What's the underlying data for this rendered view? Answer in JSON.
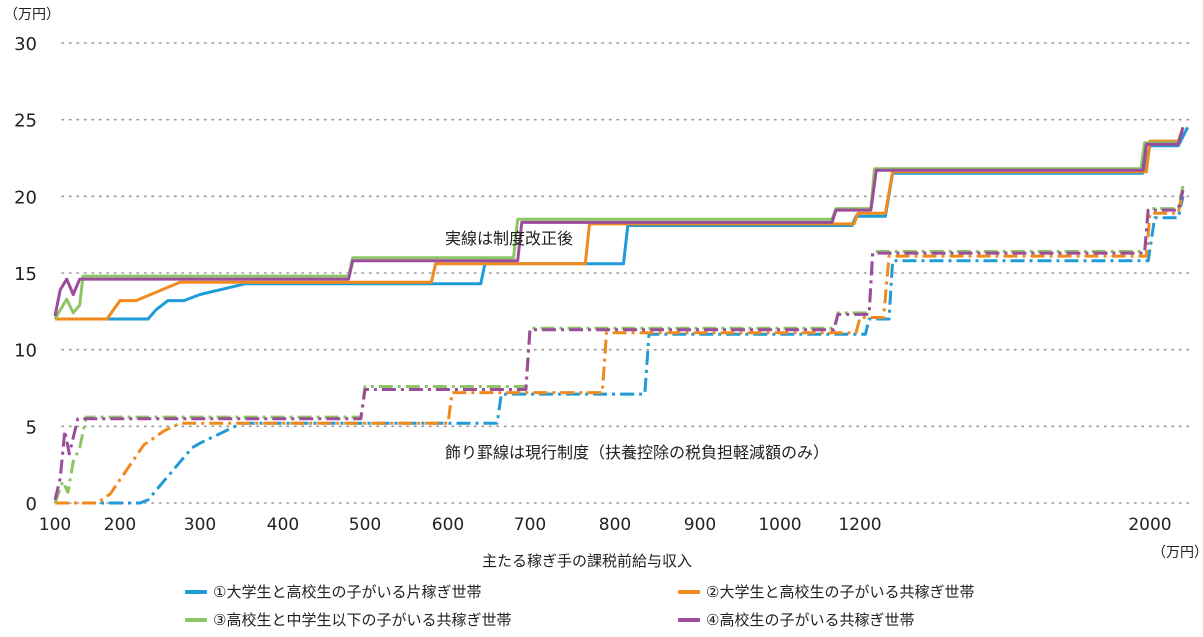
{
  "chart_data": {
    "type": "line",
    "y_unit": "（万円）",
    "x_unit": "（万円）",
    "xlabel": "主たる稼ぎ手の課税前給与収入",
    "ylim": [
      0,
      30
    ],
    "yticks": [
      0,
      5,
      10,
      15,
      20,
      25,
      30
    ],
    "xticks": [
      "100",
      "200",
      "300",
      "400",
      "500",
      "600",
      "700",
      "800",
      "900",
      "1000",
      "1200",
      "2000"
    ],
    "annotations": {
      "solid_note": "実線は制度改正後",
      "dashed_note": "飾り罫線は現行制度（扶養控除の税負担軽減額のみ）"
    },
    "legend": [
      {
        "label": "①大学生と高校生の子がいる片稼ぎ世帯",
        "color": "#1f9bd7"
      },
      {
        "label": "②大学生と高校生の子がいる共稼ぎ世帯",
        "color": "#f08a1c"
      },
      {
        "label": "③高校生と中学生以下の子がいる共稼ぎ世帯",
        "color": "#8cc665"
      },
      {
        "label": "④高校生の子がいる共稼ぎ世帯",
        "color": "#9b4c9b"
      }
    ],
    "series": [
      {
        "name": "①大学生と高校生の子がいる片稼ぎ世帯",
        "color": "#1f9bd7",
        "style": "solid",
        "points": [
          [
            100,
            12
          ],
          [
            235,
            12
          ],
          [
            245,
            12.6
          ],
          [
            260,
            13.2
          ],
          [
            280,
            13.2
          ],
          [
            300,
            13.6
          ],
          [
            355,
            14.3
          ],
          [
            640,
            14.3
          ],
          [
            645,
            15.6
          ],
          [
            810,
            15.6
          ],
          [
            815,
            18.1
          ],
          [
            1180,
            18.1
          ],
          [
            1190,
            18.7
          ],
          [
            1270,
            18.7
          ],
          [
            1290,
            21.5
          ],
          [
            1980,
            21.5
          ],
          [
            2000,
            23.3
          ],
          [
            2030,
            23.3
          ],
          [
            2040,
            24.5
          ]
        ]
      },
      {
        "name": "②大学生と高校生の子がいる共稼ぎ世帯",
        "color": "#f08a1c",
        "style": "solid",
        "points": [
          [
            100,
            12
          ],
          [
            180,
            12
          ],
          [
            200,
            13.2
          ],
          [
            220,
            13.2
          ],
          [
            275,
            14.4
          ],
          [
            580,
            14.4
          ],
          [
            585,
            15.6
          ],
          [
            765,
            15.6
          ],
          [
            770,
            18.2
          ],
          [
            1185,
            18.2
          ],
          [
            1195,
            18.9
          ],
          [
            1270,
            18.9
          ],
          [
            1290,
            21.6
          ],
          [
            1990,
            21.6
          ],
          [
            2000,
            23.6
          ],
          [
            2030,
            23.6
          ],
          [
            2035,
            24.5
          ]
        ]
      },
      {
        "name": "③高校生と中学生以下の子がいる共稼ぎ世帯",
        "color": "#8cc665",
        "style": "solid",
        "points": [
          [
            100,
            12
          ],
          [
            118,
            13.3
          ],
          [
            128,
            12.4
          ],
          [
            138,
            12.9
          ],
          [
            143,
            14.8
          ],
          [
            480,
            14.8
          ],
          [
            485,
            16
          ],
          [
            680,
            16
          ],
          [
            685,
            18.5
          ],
          [
            1130,
            18.5
          ],
          [
            1140,
            19.2
          ],
          [
            1230,
            19.2
          ],
          [
            1240,
            21.8
          ],
          [
            1975,
            21.8
          ],
          [
            1985,
            23.5
          ],
          [
            2030,
            23.5
          ],
          [
            2035,
            24.5
          ]
        ]
      },
      {
        "name": "④高校生の子がいる共稼ぎ世帯",
        "color": "#9b4c9b",
        "style": "solid",
        "points": [
          [
            100,
            12.2
          ],
          [
            108,
            13.9
          ],
          [
            118,
            14.6
          ],
          [
            128,
            13.6
          ],
          [
            138,
            14.6
          ],
          [
            480,
            14.6
          ],
          [
            485,
            15.8
          ],
          [
            685,
            15.8
          ],
          [
            690,
            18.3
          ],
          [
            1130,
            18.3
          ],
          [
            1140,
            19.1
          ],
          [
            1230,
            19.1
          ],
          [
            1245,
            21.7
          ],
          [
            1980,
            21.7
          ],
          [
            1990,
            23.4
          ],
          [
            2030,
            23.4
          ],
          [
            2035,
            24.5
          ]
        ]
      },
      {
        "name": "①大学生と高校生の子がいる片稼ぎ世帯",
        "color": "#1f9bd7",
        "style": "dashdot",
        "points": [
          [
            100,
            0
          ],
          [
            225,
            0
          ],
          [
            235,
            0.2
          ],
          [
            290,
            3.6
          ],
          [
            300,
            3.9
          ],
          [
            350,
            5.2
          ],
          [
            660,
            5.2
          ],
          [
            665,
            7.1
          ],
          [
            835,
            7.1
          ],
          [
            840,
            11
          ],
          [
            1215,
            11
          ],
          [
            1225,
            12
          ],
          [
            1280,
            12
          ],
          [
            1290,
            15.8
          ],
          [
            1995,
            15.8
          ],
          [
            2005,
            18.6
          ],
          [
            2030,
            18.6
          ],
          [
            2035,
            20
          ]
        ]
      },
      {
        "name": "②大学生と高校生の子がいる共稼ぎ世帯",
        "color": "#f08a1c",
        "style": "dashdot",
        "points": [
          [
            100,
            0
          ],
          [
            165,
            0
          ],
          [
            185,
            0.6
          ],
          [
            230,
            3.8
          ],
          [
            255,
            4.7
          ],
          [
            275,
            5.2
          ],
          [
            600,
            5.2
          ],
          [
            605,
            7.2
          ],
          [
            785,
            7.2
          ],
          [
            790,
            11.1
          ],
          [
            1190,
            11.1
          ],
          [
            1200,
            12.1
          ],
          [
            1265,
            12.1
          ],
          [
            1280,
            16.1
          ],
          [
            1990,
            16.1
          ],
          [
            2000,
            18.9
          ],
          [
            2030,
            18.9
          ],
          [
            2035,
            20.5
          ]
        ]
      },
      {
        "name": "③高校生と中学生以下の子がいる共稼ぎ世帯",
        "color": "#8cc665",
        "style": "dashdot",
        "points": [
          [
            100,
            0
          ],
          [
            112,
            1.4
          ],
          [
            120,
            0.7
          ],
          [
            128,
            2.7
          ],
          [
            138,
            3.6
          ],
          [
            148,
            5.6
          ],
          [
            495,
            5.6
          ],
          [
            500,
            7.6
          ],
          [
            695,
            7.6
          ],
          [
            700,
            11.4
          ],
          [
            1135,
            11.4
          ],
          [
            1145,
            12.4
          ],
          [
            1225,
            12.4
          ],
          [
            1235,
            16.4
          ],
          [
            1985,
            16.4
          ],
          [
            1995,
            19.2
          ],
          [
            2030,
            19.2
          ],
          [
            2035,
            20.7
          ]
        ]
      },
      {
        "name": "④高校生の子がいる共稼ぎ世帯",
        "color": "#9b4c9b",
        "style": "dashdot",
        "points": [
          [
            100,
            0.2
          ],
          [
            108,
            1.6
          ],
          [
            115,
            4.7
          ],
          [
            122,
            3.2
          ],
          [
            135,
            5.5
          ],
          [
            495,
            5.5
          ],
          [
            500,
            7.4
          ],
          [
            695,
            7.4
          ],
          [
            700,
            11.3
          ],
          [
            1135,
            11.3
          ],
          [
            1145,
            12.3
          ],
          [
            1225,
            12.3
          ],
          [
            1235,
            16.3
          ],
          [
            1985,
            16.3
          ],
          [
            1995,
            19.1
          ],
          [
            2030,
            19.1
          ],
          [
            2035,
            20.4
          ]
        ]
      }
    ]
  }
}
